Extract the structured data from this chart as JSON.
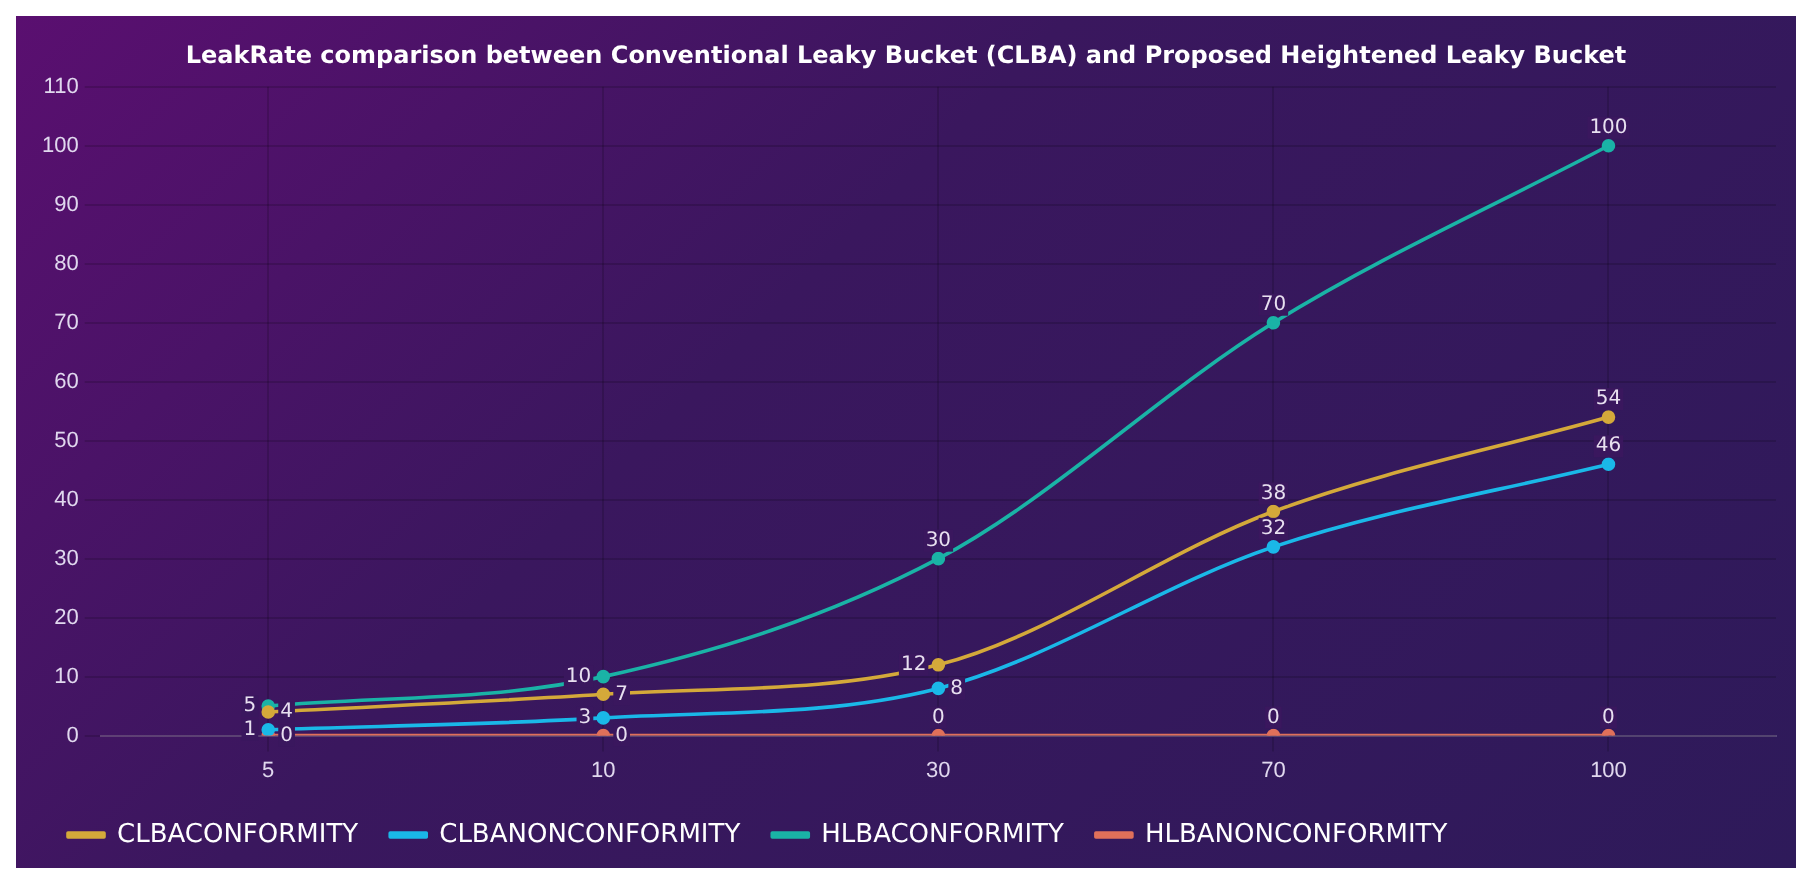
{
  "chart_data": {
    "type": "line",
    "title": "LeakRate comparison between Conventional Leaky Bucket (CLBA) and Proposed Heightened Leaky Bucket",
    "categories": [
      "5",
      "10",
      "30",
      "70",
      "100"
    ],
    "series": [
      {
        "name": "CLBACONFORMITY",
        "color": "#d4a93a",
        "values": [
          4,
          7,
          12,
          38,
          54
        ]
      },
      {
        "name": "CLBANONCONFORMITY",
        "color": "#1ab8e8",
        "values": [
          1,
          3,
          8,
          32,
          46
        ]
      },
      {
        "name": "HLBACONFORMITY",
        "color": "#1ab3a6",
        "values": [
          5,
          10,
          30,
          70,
          100
        ]
      },
      {
        "name": "HLBANONCONFORMITY",
        "color": "#e0705a",
        "values": [
          0,
          0,
          0,
          0,
          0
        ]
      }
    ],
    "ylim": [
      0,
      110
    ],
    "yticks": [
      0,
      10,
      20,
      30,
      40,
      50,
      60,
      70,
      80,
      90,
      100,
      110
    ],
    "grid": true,
    "legend": "bottom",
    "data_labels": true,
    "marker": "circle",
    "line_style": "solid"
  }
}
